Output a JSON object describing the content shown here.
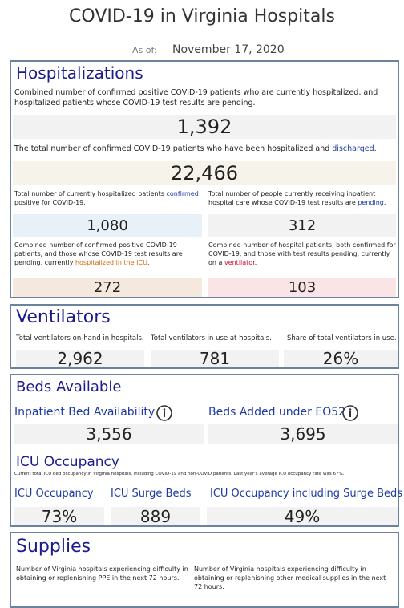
{
  "header": {
    "title": "COVID-19 in Virginia Hospitals",
    "as_of_label": "As of:",
    "date": "November 17, 2020"
  },
  "hospitalizations": {
    "title": "Hospitalizations",
    "items": [
      {
        "desc": [
          "Combined number of confirmed positive COVID-19 patients who are currently hospitalized, and hospitalized patients whose COVID-19 test results are pending."
        ],
        "value": "1,392"
      },
      {
        "desc": [
          "The total number of confirmed COVID-19 patients who have been hospitalized and ",
          "discharged",
          "."
        ],
        "value": "22,466"
      },
      {
        "desc": [
          "Total number of currently hospitalized patients ",
          "confirmed",
          " positive for COVID-19."
        ],
        "value": "1,080"
      },
      {
        "desc": [
          "Total number of people currently receiving inpatient hospital care whose COVID-19 test results are ",
          "pending",
          "."
        ],
        "value": "312"
      },
      {
        "desc": [
          "Combined number of confirmed positive COVID-19 patients, and those whose COVID-19 test results are pending, currently ",
          "hospitalized in the ICU",
          "."
        ],
        "value": "272"
      },
      {
        "desc": [
          "Combined number of hospital patients, both confirmed for COVID-19, and those with test results pending, currently on a ",
          "ventilator",
          "."
        ],
        "value": "103"
      }
    ]
  },
  "ventilators": {
    "title": "Ventilators",
    "items": [
      {
        "label": "Total ventilators on-hand in hospitals.",
        "value": "2,962"
      },
      {
        "label": "Total ventilators in use at hospitals.",
        "value": "781"
      },
      {
        "label": "Share of total ventilators in use.",
        "value": "26%"
      }
    ]
  },
  "beds": {
    "title": "Beds Available",
    "items": [
      {
        "label": "Inpatient Bed Availability",
        "value": "3,556"
      },
      {
        "label": "Beds Added under EO52",
        "value": "3,695"
      }
    ],
    "icu_title": "ICU Occupancy",
    "icu_note": "Current total ICU bed occupancy in Virginia hospitals, including COVID-19 and non-COVID patients. Last year's average ICU occupancy rate was 67%.",
    "icu_items": [
      {
        "label": "ICU Occupancy",
        "value": "73%"
      },
      {
        "label": "ICU Surge Beds",
        "value": "889"
      },
      {
        "label": "ICU Occupancy including Surge Beds",
        "value": "49%"
      }
    ]
  },
  "supplies": {
    "title": "Supplies",
    "notes": [
      "Number of Virginia hospitals experiencing difficulty in obtaining or replenishing PPE in the next 72 hours.",
      "Number of Virginia hospitals experiencing difficulty in obtaining or replenishing other medical supplies in the next 72 hours."
    ]
  }
}
